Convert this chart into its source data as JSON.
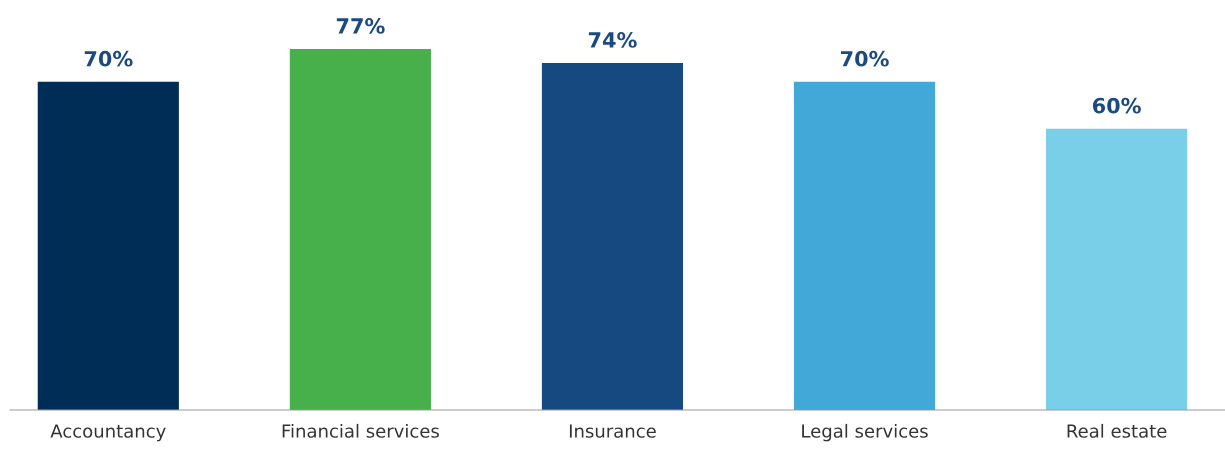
{
  "chart_data": {
    "type": "bar",
    "categories": [
      "Accountancy",
      "Financial services",
      "Insurance",
      "Legal services",
      "Real estate"
    ],
    "values": [
      70,
      77,
      74,
      70,
      60
    ],
    "colors": [
      "#002d56",
      "#47b04b",
      "#16497f",
      "#41a8d8",
      "#79cfe8"
    ],
    "value_labels": [
      "70%",
      "77%",
      "74%",
      "70%",
      "60%"
    ],
    "grid": false,
    "legend": false
  }
}
